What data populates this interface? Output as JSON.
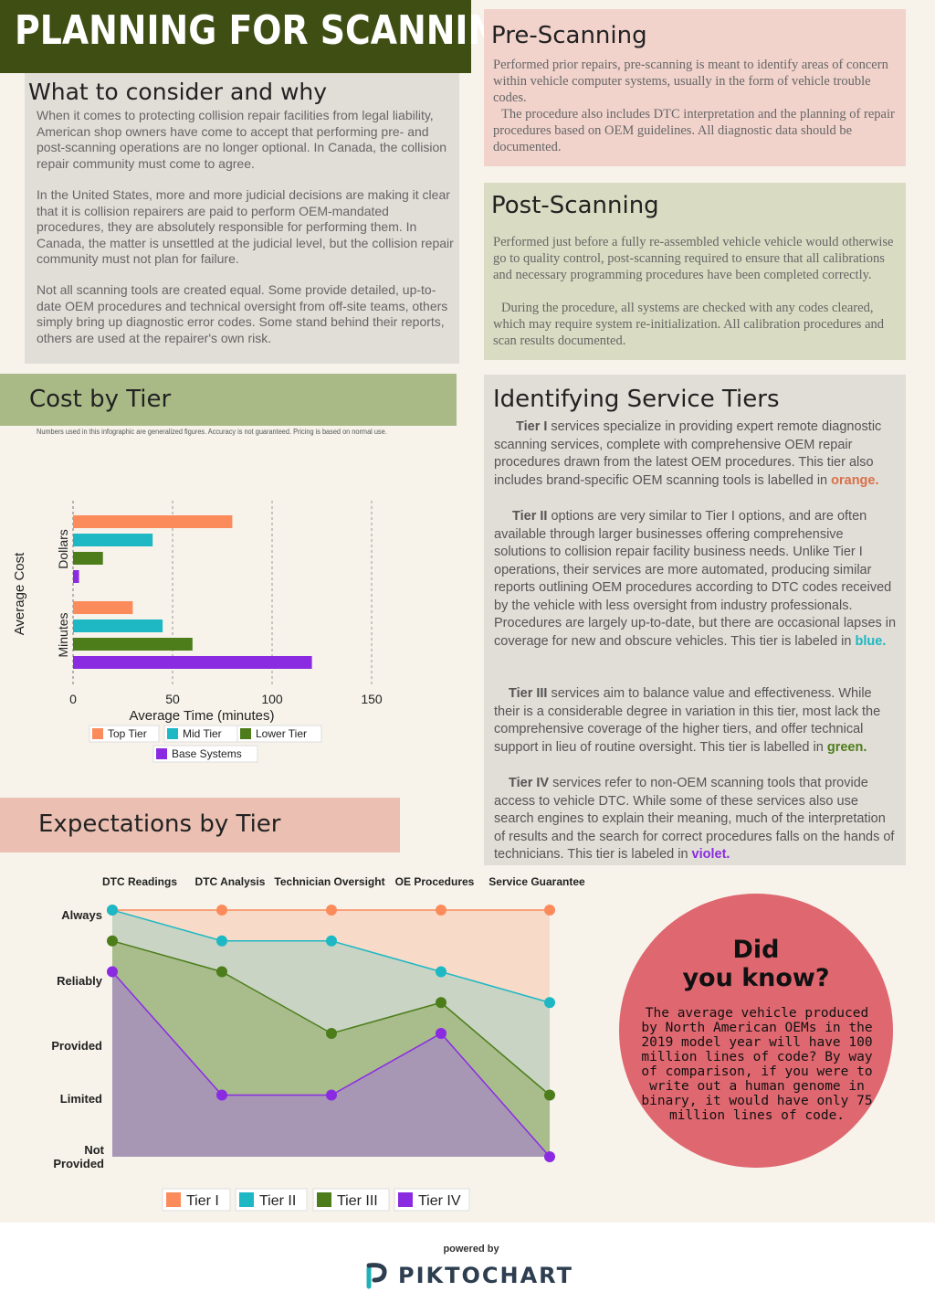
{
  "title": "PLANNING FOR SCANNING",
  "consider": {
    "heading": "What to consider and why",
    "p1": "When it comes to protecting collision repair facilities from legal liability, American shop owners have come to accept that performing pre- and post-scanning operations are no longer optional. In Canada, the collision repair community must come to agree.",
    "p2": "In the United States, more and more judicial decisions are making it clear that it is collision repairers are paid to perform OEM-mandated procedures, they are absolutely responsible for performing them. In Canada, the matter is unsettled at the judicial level, but the collision repair community must not plan for failure.",
    "p3": "Not all scanning tools are created equal. Some provide detailed, up-to-date OEM procedures and technical oversight from off-site teams, others simply bring up diagnostic error codes. Some stand behind their reports, others are used at the repairer's own risk."
  },
  "pre": {
    "heading": "Pre-Scanning",
    "p1": "Performed prior repairs, pre-scanning is meant to identify areas of concern within vehicle computer systems, usually in the form of vehicle trouble codes.",
    "p2": "The procedure also includes DTC interpretation and the planning of repair procedures based on OEM guidelines. All diagnostic data should be documented."
  },
  "post": {
    "heading": "Post-Scanning",
    "p1": "Performed just before a fully re-assembled vehicle vehicle would otherwise go to quality control, post-scanning required to ensure that all calibrations and necessary programming procedures have been completed correctly.",
    "p2": "During the procedure, all systems are checked with any codes cleared, which may require system re-initialization. All calibration procedures and scan results documented."
  },
  "cost": {
    "heading": "Cost by Tier",
    "note": "Numbers used in this infographic are generalized figures.  Accuracy is not guaranteed. Pricing is based on normal use."
  },
  "tiers": {
    "heading": "Identifying Service Tiers",
    "t1_label": "Tier I",
    "t1_text": " services specialize in providing expert remote diagnostic scanning services, complete with comprehensive OEM repair procedures drawn from the latest OEM procedures. This tier also includes brand-specific OEM scanning tools is labelled in ",
    "t1_color": "orange.",
    "t2_label": "Tier II",
    "t2_text": " options are very similar to Tier I options, and are often available through larger businesses offering comprehensive solutions to collision repair facility business needs. Unlike Tier I operations, their services are more automated, producing similar reports outlining OEM procedures according to DTC codes received by the vehicle with less oversight from industry professionals. Procedures are largely up-to-date, but there are occasional lapses in coverage for new and obscure vehicles. This tier is labeled in ",
    "t2_color": "blue.",
    "t3_label": "Tier III",
    "t3_text": " services aim to balance value and effectiveness. While their is a considerable degree in variation in this tier, most lack the comprehensive coverage of the higher tiers, and offer technical support in lieu of routine oversight. This tier is labelled in ",
    "t3_color": "green.",
    "t4_label": "Tier IV",
    "t4_text": " services refer to non-OEM scanning tools that provide access to vehicle DTC. While some of these services also use search engines to explain their meaning, much of the interpretation of results and the search for correct procedures falls on the hands of technicians. This tier is labeled in ",
    "t4_color": "violet."
  },
  "expectations": {
    "heading": "Expectations by Tier"
  },
  "didyouknow": {
    "heading_line1": "Did",
    "heading_line2": "you know?",
    "text": "The average vehicle produced by North American OEMs in the 2019 model year will have 100 million lines of code? By way of comparison, if you were to write out a human genome in binary, it would have only 75 million lines of code."
  },
  "footer": {
    "powered": "powered by",
    "brand": "PIKTOCHART"
  },
  "colors": {
    "top": "#fb8b5b",
    "mid": "#1db8c4",
    "lower": "#4c7d1a",
    "base": "#8a2be2",
    "tier1": "#fb8b5b",
    "tier2": "#1db8c4",
    "tier3": "#4c7d1a",
    "tier4": "#8a2be2"
  },
  "chart_data": [
    {
      "type": "bar",
      "orientation": "horizontal",
      "categories": [
        "Dollars",
        "Minutes"
      ],
      "series": [
        {
          "name": "Top Tier",
          "values": [
            80,
            30
          ]
        },
        {
          "name": "Mid Tier",
          "values": [
            40,
            45
          ]
        },
        {
          "name": "Lower Tier",
          "values": [
            15,
            60
          ]
        },
        {
          "name": "Base Systems",
          "values": [
            3,
            120
          ]
        }
      ],
      "xlabel": "Average Time (minutes)",
      "ylabel": "Average Cost",
      "xlim": [
        0,
        150
      ],
      "xticks": [
        0,
        50,
        100,
        150
      ],
      "grid": "vertical dashed",
      "legend": "bottom"
    },
    {
      "type": "area",
      "categories": [
        "DTC Readings",
        "DTC Analysis",
        "Technician Oversight",
        "OE Procedures",
        "Service Guarantee"
      ],
      "ylevels": [
        "Not Provided",
        "Limited",
        "Provided",
        "Reliably",
        "Always"
      ],
      "series": [
        {
          "name": "Tier I",
          "values": [
            4,
            4,
            4,
            4,
            4
          ]
        },
        {
          "name": "Tier II",
          "values": [
            4,
            3.5,
            3.5,
            3,
            2.5
          ]
        },
        {
          "name": "Tier III",
          "values": [
            3.5,
            3,
            2,
            2.5,
            1
          ]
        },
        {
          "name": "Tier IV",
          "values": [
            3,
            1,
            1,
            2,
            0
          ]
        }
      ],
      "legend": "bottom"
    }
  ]
}
